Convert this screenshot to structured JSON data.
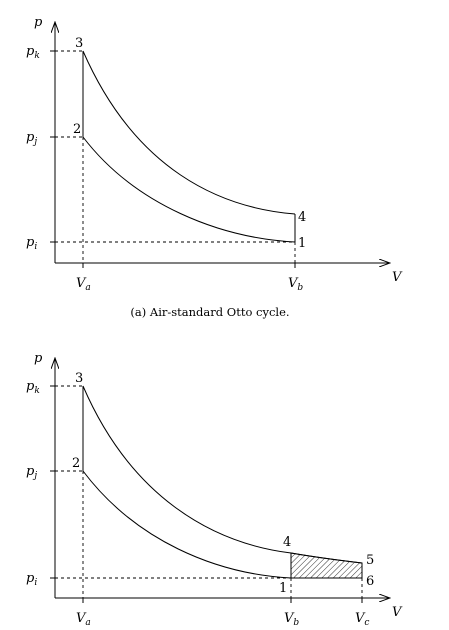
{
  "diagram_a": {
    "caption": "(a) Air-standard Otto cycle.",
    "axis_y_label": "p",
    "axis_x_label": "V",
    "p_labels": [
      {
        "id": "pk",
        "base": "p",
        "sub": "k"
      },
      {
        "id": "pj",
        "base": "p",
        "sub": "j"
      },
      {
        "id": "pi",
        "base": "p",
        "sub": "i"
      }
    ],
    "v_labels": [
      {
        "id": "Va",
        "base": "V",
        "sub": "a"
      },
      {
        "id": "Vb",
        "base": "V",
        "sub": "b"
      }
    ],
    "points": [
      "1",
      "2",
      "3",
      "4"
    ]
  },
  "diagram_b": {
    "caption": "",
    "axis_y_label": "p",
    "axis_x_label": "V",
    "p_labels": [
      {
        "id": "pk",
        "base": "p",
        "sub": "k"
      },
      {
        "id": "pj",
        "base": "p",
        "sub": "j"
      },
      {
        "id": "pi",
        "base": "p",
        "sub": "i"
      }
    ],
    "v_labels": [
      {
        "id": "Va",
        "base": "V",
        "sub": "a"
      },
      {
        "id": "Vb",
        "base": "V",
        "sub": "b"
      },
      {
        "id": "Vc",
        "base": "V",
        "sub": "c"
      }
    ],
    "points": [
      "1",
      "2",
      "3",
      "4",
      "5",
      "6"
    ]
  }
}
